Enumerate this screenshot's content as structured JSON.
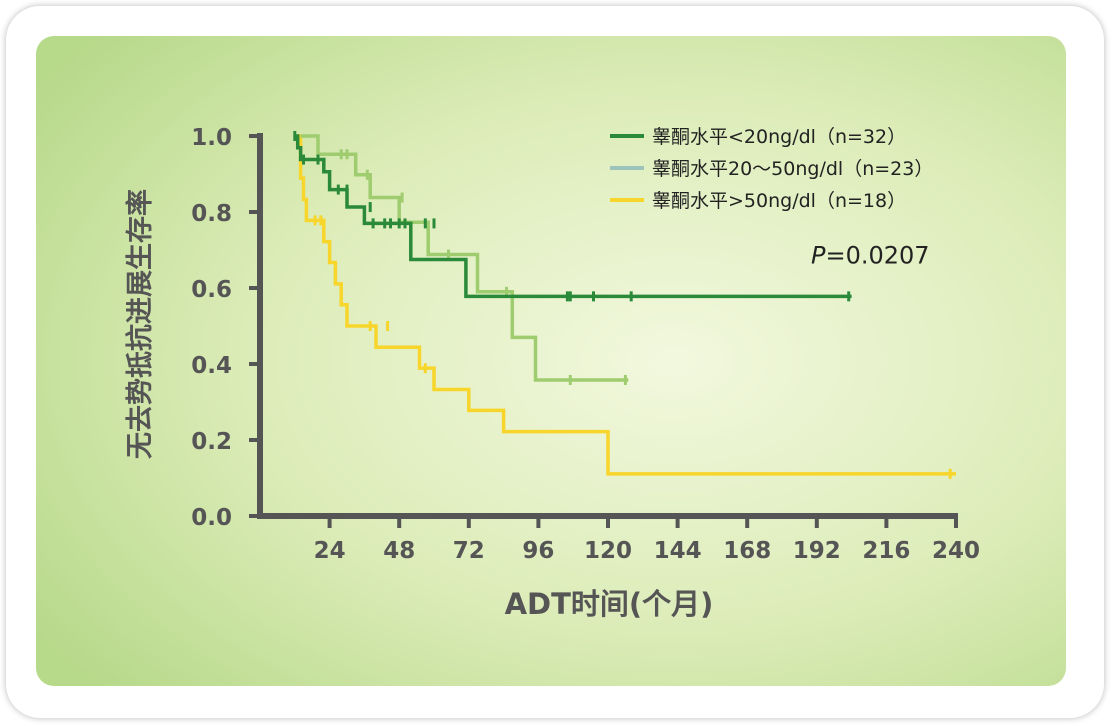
{
  "chart_data": {
    "type": "line",
    "subtype": "kaplan-meier",
    "title": "",
    "xlabel": "ADT时间(个月)",
    "ylabel": "无去势抵抗进展生存率",
    "xlim": [
      0,
      240
    ],
    "ylim": [
      0,
      1
    ],
    "xticks": [
      24,
      48,
      72,
      96,
      120,
      144,
      168,
      192,
      216,
      240
    ],
    "yticks": [
      0.0,
      0.2,
      0.4,
      0.6,
      0.8,
      1.0
    ],
    "ytick_labels": [
      "0.0",
      "0.2",
      "0.4",
      "0.6",
      "0.8",
      "1.0"
    ],
    "grid": false,
    "legend_position": "top-right",
    "annotation": {
      "label": "P",
      "value": "=0.0207",
      "x": 190,
      "y": 0.665
    },
    "series": [
      {
        "name": "睾酮水平<20ng/dl（n=32）",
        "color": "#2a8a3a",
        "steps": [
          [
            12,
            1.0
          ],
          [
            13,
            0.969
          ],
          [
            14,
            0.938
          ],
          [
            22,
            0.906
          ],
          [
            24,
            0.859
          ],
          [
            30,
            0.813
          ],
          [
            36,
            0.77
          ],
          [
            52,
            0.675
          ],
          [
            71,
            0.578
          ],
          [
            204,
            0.578
          ]
        ],
        "censored": [
          [
            12,
            1.0
          ],
          [
            15,
            0.938
          ],
          [
            20,
            0.938
          ],
          [
            27,
            0.859
          ],
          [
            30,
            0.859
          ],
          [
            38,
            0.813
          ],
          [
            39,
            0.77
          ],
          [
            43,
            0.77
          ],
          [
            45,
            0.77
          ],
          [
            48,
            0.77
          ],
          [
            50,
            0.77
          ],
          [
            57,
            0.77
          ],
          [
            60,
            0.77
          ],
          [
            106,
            0.578
          ],
          [
            107,
            0.578
          ],
          [
            115,
            0.578
          ],
          [
            128,
            0.578
          ],
          [
            203,
            0.578
          ]
        ]
      },
      {
        "name": "睾酮水平20～50ng/dl（n=23）",
        "color": "#9fcc6e",
        "legend_swatch_color": "#9cc4bc",
        "steps": [
          [
            14,
            1.0
          ],
          [
            20,
            0.952
          ],
          [
            33,
            0.898
          ],
          [
            38,
            0.838
          ],
          [
            48,
            0.773
          ],
          [
            58,
            0.688
          ],
          [
            75,
            0.59
          ],
          [
            87,
            0.47
          ],
          [
            95,
            0.358
          ],
          [
            127,
            0.358
          ]
        ],
        "censored": [
          [
            28,
            0.952
          ],
          [
            30,
            0.952
          ],
          [
            37,
            0.898
          ],
          [
            49,
            0.838
          ],
          [
            65,
            0.688
          ],
          [
            85,
            0.59
          ],
          [
            107,
            0.358
          ],
          [
            126,
            0.358
          ]
        ]
      },
      {
        "name": "睾酮水平>50ng/dl（n=18）",
        "color": "#f7d52a",
        "steps": [
          [
            12,
            1.0
          ],
          [
            14,
            0.889
          ],
          [
            15,
            0.833
          ],
          [
            16,
            0.778
          ],
          [
            22,
            0.722
          ],
          [
            24,
            0.667
          ],
          [
            26,
            0.611
          ],
          [
            28,
            0.556
          ],
          [
            30,
            0.5
          ],
          [
            40,
            0.444
          ],
          [
            55,
            0.389
          ],
          [
            60,
            0.333
          ],
          [
            72,
            0.278
          ],
          [
            84,
            0.222
          ],
          [
            120,
            0.111
          ],
          [
            240,
            0.111
          ]
        ],
        "censored": [
          [
            19,
            0.778
          ],
          [
            21,
            0.778
          ],
          [
            38,
            0.5
          ],
          [
            44,
            0.5
          ],
          [
            57,
            0.389
          ],
          [
            238,
            0.111
          ]
        ]
      }
    ]
  }
}
